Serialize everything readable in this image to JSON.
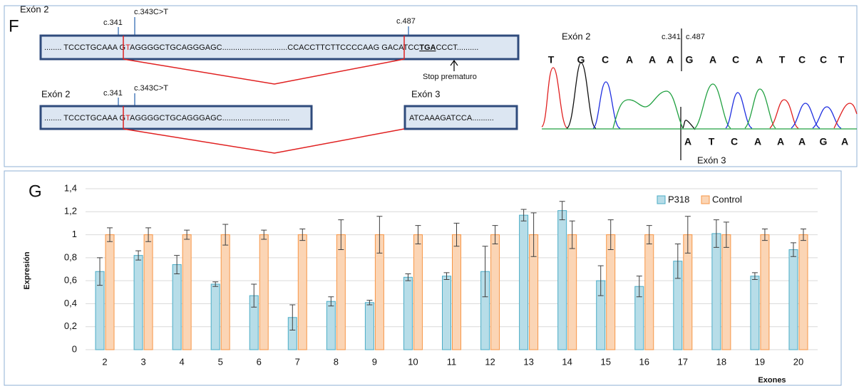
{
  "panel_f": {
    "label": "F",
    "row1": {
      "exon": "Exón 2",
      "c341": "c.341",
      "c343": "c.343C>T",
      "c487": "c.487",
      "seq": [
        "........ TCCCTGCAAA G",
        "T",
        "AGGGGCTGCAGGGAGC..............................CCACCTTCTTCCCCAAG GACATCC",
        "TGA",
        "CCCT.........."
      ],
      "stop": "Stop prematuro"
    },
    "row2": {
      "exon": "Exón 2",
      "c341": "c.341",
      "c343": "c.343C>T",
      "seq": [
        "........ TCCCTGCAAA G",
        "T",
        "AGGGGCTGCAGGGAGC..............................."
      ],
      "exon3": "Exón 3",
      "seq3": "ATCAAAGATCCA.........."
    },
    "chromatogram": {
      "exon2": "Exón 2",
      "c341": "c.341",
      "c487": "c.487",
      "exon3": "Exón 3",
      "top_bases": [
        "T",
        "G",
        "C",
        "A",
        "A",
        "A",
        "G",
        "A",
        "C",
        "A",
        "T",
        "C",
        "C",
        "T"
      ],
      "bottom_bases": [
        "A",
        "T",
        "C",
        "A",
        "A",
        "A",
        "G",
        "A"
      ]
    }
  },
  "panel_g_label": "G",
  "chart_data": {
    "type": "bar",
    "ylabel": "Expresión",
    "xlabel": "Exones",
    "categories": [
      "2",
      "3",
      "4",
      "5",
      "6",
      "7",
      "8",
      "9",
      "10",
      "11",
      "12",
      "13",
      "14",
      "15",
      "16",
      "17",
      "18",
      "19",
      "20"
    ],
    "series": [
      {
        "name": "P318",
        "color": "#b7dde8",
        "edge": "#4bacc6",
        "values": [
          0.68,
          0.82,
          0.74,
          0.57,
          0.47,
          0.28,
          0.42,
          0.41,
          0.63,
          0.64,
          0.68,
          1.17,
          1.21,
          0.6,
          0.55,
          0.77,
          1.01,
          0.64,
          0.87
        ],
        "errors": [
          0.12,
          0.04,
          0.08,
          0.02,
          0.1,
          0.11,
          0.04,
          0.02,
          0.03,
          0.03,
          0.22,
          0.05,
          0.08,
          0.13,
          0.09,
          0.15,
          0.12,
          0.03,
          0.06
        ]
      },
      {
        "name": "Control",
        "color": "#fbd5b5",
        "edge": "#f79646",
        "values": [
          1,
          1,
          1,
          1,
          1,
          1,
          1,
          1,
          1,
          1,
          1,
          1,
          1,
          1,
          1,
          1,
          1,
          1,
          1
        ],
        "errors": [
          0.06,
          0.06,
          0.04,
          0.09,
          0.04,
          0.05,
          0.13,
          0.16,
          0.08,
          0.1,
          0.08,
          0.19,
          0.12,
          0.13,
          0.08,
          0.16,
          0.11,
          0.05,
          0.05
        ]
      }
    ],
    "ylim": [
      0,
      1.4
    ],
    "yticks": [
      0,
      {
        "value": 0.2,
        "label": "0,2"
      },
      {
        "value": 0.4,
        "label": "0,4"
      },
      {
        "value": 0.6,
        "label": "0,6"
      },
      {
        "value": 0.8,
        "label": "0,8"
      },
      1,
      {
        "value": 1.2,
        "label": "1,2"
      },
      {
        "value": 1.4,
        "label": "1,4"
      }
    ],
    "grid": true,
    "legend": "upper right"
  }
}
